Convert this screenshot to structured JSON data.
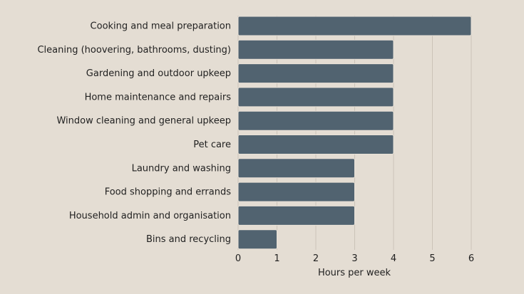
{
  "chart_data": {
    "type": "bar",
    "orientation": "horizontal",
    "categories": [
      "Cooking and meal preparation",
      "Cleaning (hoovering, bathrooms, dusting)",
      "Gardening and outdoor upkeep",
      "Home maintenance and repairs",
      "Window cleaning and general upkeep",
      "Pet care",
      "Laundry and washing",
      "Food shopping and errands",
      "Household admin and organisation",
      "Bins and recycling"
    ],
    "values": [
      6,
      4,
      4,
      4,
      4,
      4,
      3,
      3,
      3,
      1
    ],
    "title": "",
    "xlabel": "Hours per week",
    "ylabel": "",
    "xlim": [
      0,
      6
    ],
    "xticks": [
      "0",
      "1",
      "2",
      "3",
      "4",
      "5",
      "6"
    ],
    "grid": "vertical",
    "colors": {
      "bar": "#516370",
      "background": "#e4ddd3",
      "grid": "#cbc3b8",
      "text": "#1f1f1f"
    }
  }
}
